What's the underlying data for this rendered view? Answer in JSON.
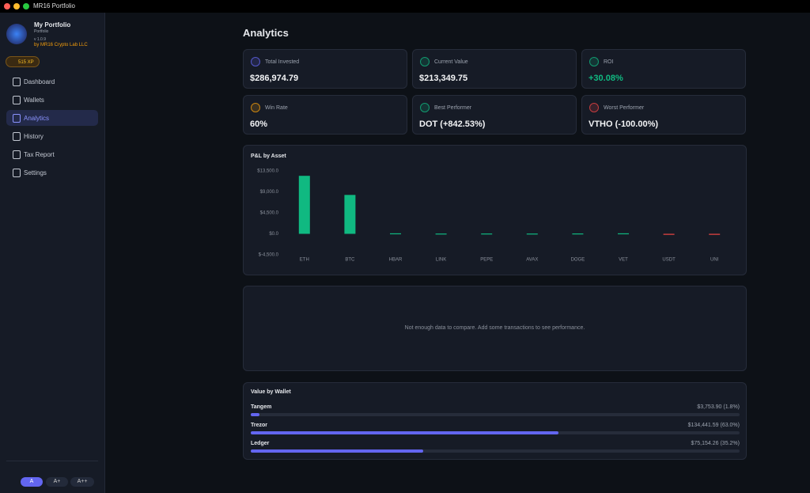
{
  "window": {
    "title": "MR16 Portfolio"
  },
  "sidebar": {
    "app_name": "My Portfolio",
    "subtitle": "Portfolio",
    "version": "v 1.0.9",
    "author": "by MR16 Crypto Lab LLC",
    "xp": "515 XP",
    "nav": [
      "Dashboard",
      "Wallets",
      "Analytics",
      "History",
      "Tax Report",
      "Settings"
    ],
    "active_index": 2,
    "font_sizes": [
      "A",
      "A+",
      "A++"
    ]
  },
  "page": {
    "title": "Analytics"
  },
  "stats": [
    {
      "label": "Total Invested",
      "value": "$286,974.79",
      "color": "#6366f1"
    },
    {
      "label": "Current Value",
      "value": "$213,349.75",
      "color": "#10b981"
    },
    {
      "label": "ROI",
      "value": "+30.08%",
      "color": "#10b981"
    },
    {
      "label": "Win Rate",
      "value": "60%",
      "color": "#f59e0b"
    },
    {
      "label": "Best Performer",
      "value": "DOT (+842.53%)",
      "color": "#10b981"
    },
    {
      "label": "Worst Performer",
      "value": "VTHO (-100.00%)",
      "color": "#ef4444"
    }
  ],
  "chart_data": {
    "type": "bar",
    "title": "P&L by Asset",
    "categories": [
      "ETH",
      "BTC",
      "HBAR",
      "LINK",
      "PEPE",
      "AVAX",
      "DOGE",
      "VET",
      "USDT",
      "UNI"
    ],
    "values": [
      12450,
      8350,
      110,
      60,
      70,
      60,
      80,
      110,
      -120,
      -100
    ],
    "ylim": [
      -4500,
      13500
    ],
    "yticks": [
      {
        "value": -4500,
        "label": "$-4,500.0"
      },
      {
        "value": 0,
        "label": "$0.0"
      },
      {
        "value": 4500,
        "label": "$4,500.0"
      },
      {
        "value": 9000,
        "label": "$9,000.0"
      },
      {
        "value": 13500,
        "label": "$13,500.0"
      }
    ],
    "positive_color": "#10b981",
    "negative_color": "#ef4444"
  },
  "empty_message": "Not enough data to compare. Add some transactions to see performance.",
  "wallets": {
    "title": "Value by Wallet",
    "color": "#6366f1",
    "items": [
      {
        "name": "Tangem",
        "value": "$3,753.90 (1.8%)",
        "share": 1.8
      },
      {
        "name": "Trezor",
        "value": "$134,441.59 (63.0%)",
        "share": 63.0
      },
      {
        "name": "Ledger",
        "value": "$75,154.26 (35.2%)",
        "share": 35.2
      }
    ]
  }
}
